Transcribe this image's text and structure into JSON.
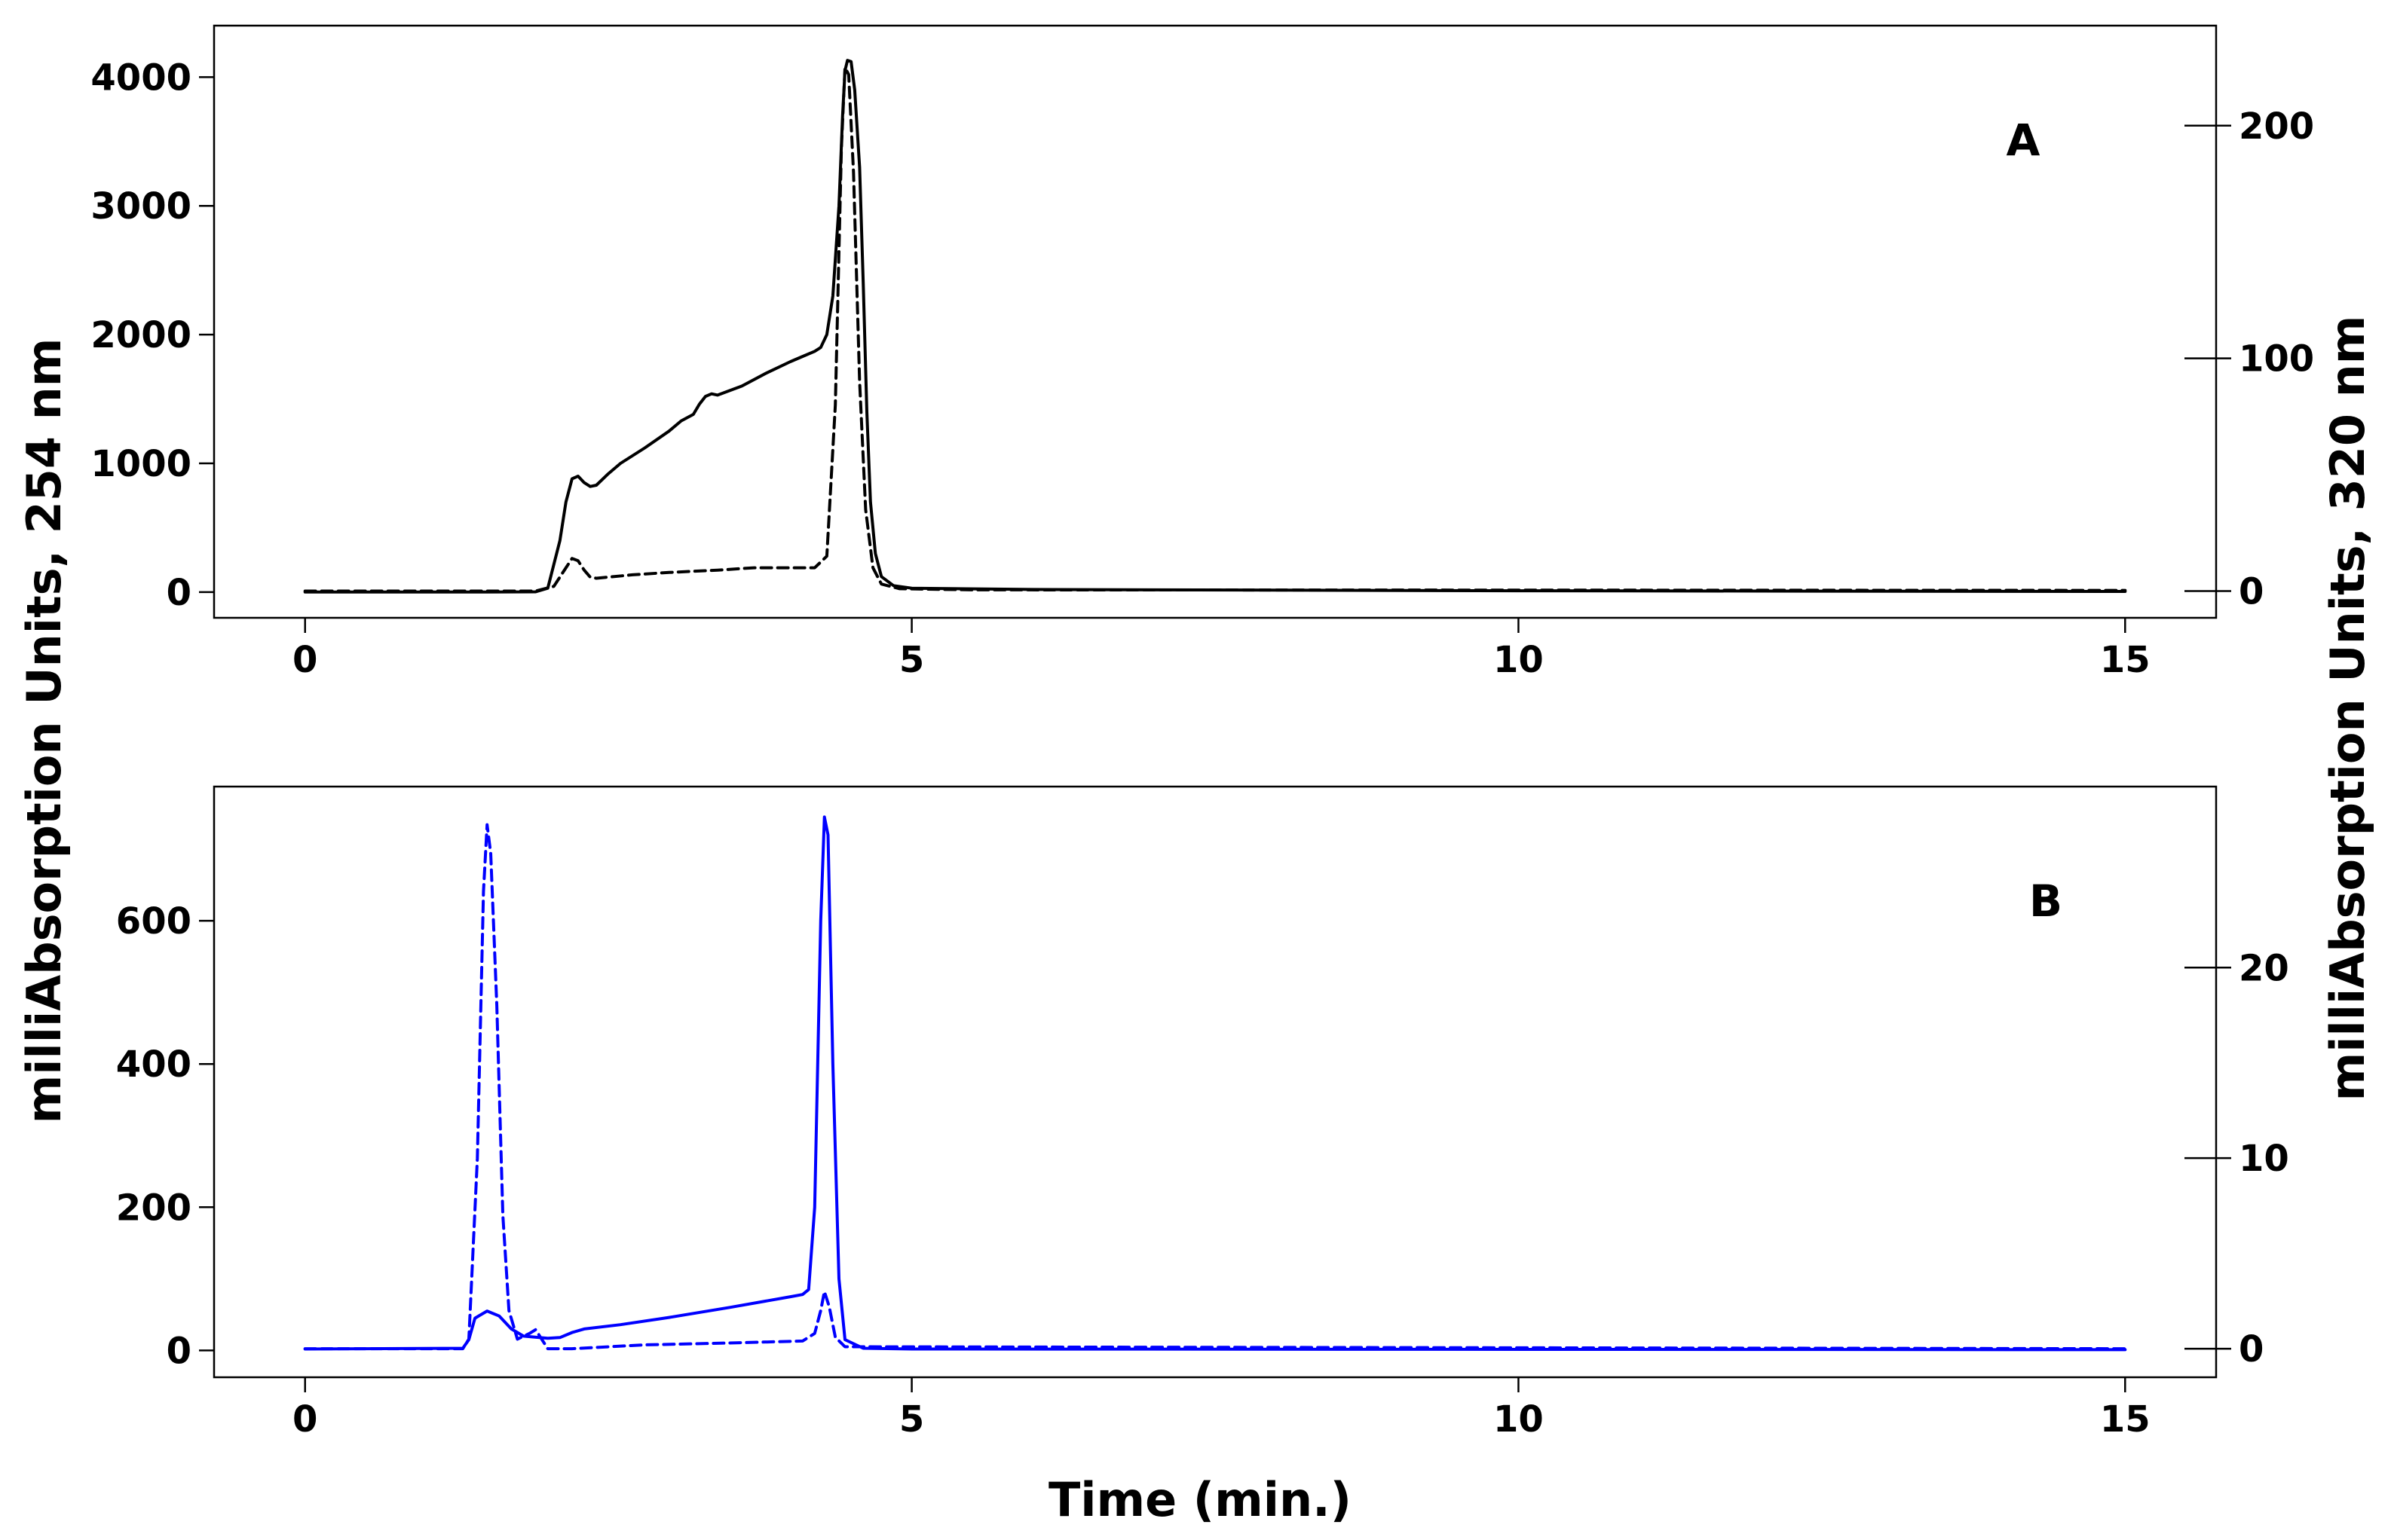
{
  "chart_data": {
    "type": "line",
    "shared_xlabel": "Time (min.)",
    "left_ylabel": "milliAbsorption Units, 254 nm",
    "right_ylabel": "milliAbsorption Units, 320 nm",
    "panels": [
      {
        "id": "A",
        "label": "A",
        "color": "#000000",
        "xlim": [
          -0.75,
          15.75
        ],
        "xticks": [
          0,
          5,
          10,
          15
        ],
        "ylim_left": [
          -200,
          4400
        ],
        "yticks_left": [
          0,
          1000,
          2000,
          3000,
          4000
        ],
        "ylim_right": [
          -11.5,
          243
        ],
        "yticks_right": [
          0,
          100,
          200
        ],
        "series": [
          {
            "axis": "left",
            "linestyle": "solid",
            "points": [
              [
                0,
                0
              ],
              [
                1.5,
                0
              ],
              [
                1.9,
                2
              ],
              [
                2.0,
                30
              ],
              [
                2.1,
                400
              ],
              [
                2.15,
                700
              ],
              [
                2.2,
                880
              ],
              [
                2.25,
                900
              ],
              [
                2.3,
                850
              ],
              [
                2.35,
                820
              ],
              [
                2.4,
                830
              ],
              [
                2.5,
                920
              ],
              [
                2.6,
                1000
              ],
              [
                2.8,
                1120
              ],
              [
                3.0,
                1250
              ],
              [
                3.2,
                1380
              ],
              [
                3.1,
                1330
              ],
              [
                3.2,
                1380
              ],
              [
                3.25,
                1460
              ],
              [
                3.3,
                1520
              ],
              [
                3.35,
                1540
              ],
              [
                3.4,
                1530
              ],
              [
                3.6,
                1600
              ],
              [
                3.8,
                1700
              ],
              [
                4.0,
                1790
              ],
              [
                4.1,
                1830
              ],
              [
                4.2,
                1870
              ],
              [
                4.25,
                1900
              ],
              [
                4.3,
                2000
              ],
              [
                4.35,
                2300
              ],
              [
                4.4,
                3000
              ],
              [
                4.43,
                3700
              ],
              [
                4.45,
                4050
              ],
              [
                4.47,
                4130
              ],
              [
                4.5,
                4120
              ],
              [
                4.53,
                3900
              ],
              [
                4.57,
                3300
              ],
              [
                4.6,
                2400
              ],
              [
                4.63,
                1400
              ],
              [
                4.66,
                700
              ],
              [
                4.7,
                300
              ],
              [
                4.75,
                120
              ],
              [
                4.85,
                50
              ],
              [
                5.0,
                30
              ],
              [
                6.0,
                20
              ],
              [
                8.0,
                15
              ],
              [
                10.0,
                10
              ],
              [
                12.0,
                8
              ],
              [
                15.0,
                5
              ]
            ]
          },
          {
            "axis": "right",
            "linestyle": "dashed",
            "points": [
              [
                0,
                0
              ],
              [
                1.9,
                0
              ],
              [
                2.05,
                2
              ],
              [
                2.15,
                10
              ],
              [
                2.2,
                14
              ],
              [
                2.25,
                13
              ],
              [
                2.3,
                9
              ],
              [
                2.35,
                6
              ],
              [
                2.4,
                5.5
              ],
              [
                2.5,
                6
              ],
              [
                2.7,
                7
              ],
              [
                3.0,
                8
              ],
              [
                3.4,
                9
              ],
              [
                3.7,
                10
              ],
              [
                4.0,
                10
              ],
              [
                4.2,
                10
              ],
              [
                4.3,
                15
              ],
              [
                4.37,
                80
              ],
              [
                4.42,
                190
              ],
              [
                4.45,
                225
              ],
              [
                4.48,
                222
              ],
              [
                4.52,
                180
              ],
              [
                4.57,
                90
              ],
              [
                4.62,
                35
              ],
              [
                4.68,
                10
              ],
              [
                4.75,
                3
              ],
              [
                4.9,
                1
              ],
              [
                5.5,
                0.5
              ],
              [
                15.0,
                0.3
              ]
            ]
          }
        ]
      },
      {
        "id": "B",
        "label": "B",
        "color": "#0000ff",
        "xlim": [
          -0.75,
          15.75
        ],
        "xticks": [
          0,
          5,
          10,
          15
        ],
        "ylim_left": [
          -37.5,
          787.5
        ],
        "yticks_left": [
          0,
          200,
          400,
          600
        ],
        "ylim_right": [
          -1.5,
          29.5
        ],
        "yticks_right": [
          0,
          10,
          20
        ],
        "series": [
          {
            "axis": "left",
            "linestyle": "solid",
            "points": [
              [
                0,
                2
              ],
              [
                1.3,
                3
              ],
              [
                1.35,
                15
              ],
              [
                1.4,
                45
              ],
              [
                1.5,
                55
              ],
              [
                1.6,
                48
              ],
              [
                1.7,
                30
              ],
              [
                1.8,
                20
              ],
              [
                2.0,
                17
              ],
              [
                2.1,
                18
              ],
              [
                2.2,
                25
              ],
              [
                2.3,
                30
              ],
              [
                2.6,
                36
              ],
              [
                3.0,
                46
              ],
              [
                3.5,
                60
              ],
              [
                4.0,
                75
              ],
              [
                4.1,
                78
              ],
              [
                4.15,
                85
              ],
              [
                4.2,
                200
              ],
              [
                4.25,
                600
              ],
              [
                4.28,
                745
              ],
              [
                4.31,
                720
              ],
              [
                4.35,
                400
              ],
              [
                4.4,
                100
              ],
              [
                4.45,
                15
              ],
              [
                4.6,
                3
              ],
              [
                5.0,
                2
              ],
              [
                15.0,
                1
              ]
            ]
          },
          {
            "axis": "right",
            "linestyle": "dashed",
            "points": [
              [
                0,
                0
              ],
              [
                1.3,
                0
              ],
              [
                1.35,
                0.5
              ],
              [
                1.42,
                10
              ],
              [
                1.47,
                24
              ],
              [
                1.5,
                27.5
              ],
              [
                1.53,
                26
              ],
              [
                1.58,
                18
              ],
              [
                1.63,
                7
              ],
              [
                1.68,
                2
              ],
              [
                1.75,
                0.5
              ],
              [
                1.85,
                0.8
              ],
              [
                1.9,
                1
              ],
              [
                1.95,
                0.5
              ],
              [
                2.0,
                0
              ],
              [
                2.2,
                0
              ],
              [
                2.8,
                0.2
              ],
              [
                3.5,
                0.3
              ],
              [
                4.1,
                0.4
              ],
              [
                4.2,
                0.8
              ],
              [
                4.25,
                2
              ],
              [
                4.28,
                3
              ],
              [
                4.32,
                2.2
              ],
              [
                4.37,
                0.6
              ],
              [
                4.45,
                0.1
              ],
              [
                15.0,
                0
              ]
            ]
          }
        ]
      }
    ]
  }
}
